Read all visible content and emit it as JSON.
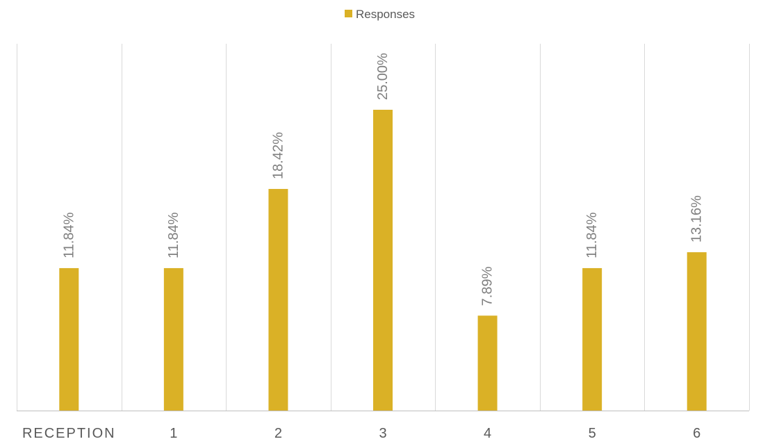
{
  "chart_data": {
    "type": "bar",
    "categories": [
      "RECEPTION",
      "1",
      "2",
      "3",
      "4",
      "5",
      "6"
    ],
    "series": [
      {
        "name": "Responses",
        "values": [
          11.84,
          11.84,
          18.42,
          25.0,
          7.89,
          11.84,
          13.16
        ],
        "labels": [
          "11.84%",
          "11.84%",
          "18.42%",
          "25.00%",
          "7.89%",
          "11.84%",
          "13.16%"
        ],
        "color": "#DAB126"
      }
    ],
    "ylim": [
      0,
      30
    ],
    "grid": "vertical category separators",
    "legend": "top-center",
    "colors": {
      "bar": "#DAB126",
      "grid": "#D9D9D9",
      "axis": "#BFBFBF",
      "text": "#595959",
      "label": "#7F7F7F"
    }
  }
}
